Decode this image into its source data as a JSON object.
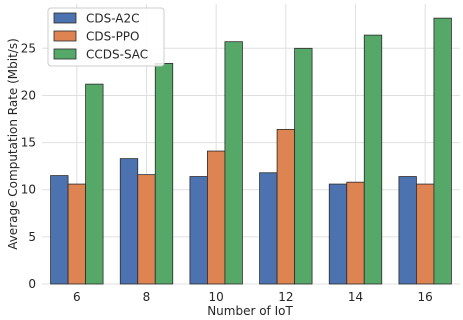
{
  "chart_data": {
    "type": "bar",
    "xlabel": "Number of IoT",
    "ylabel": "Average Computation Rate (Mbit/s)",
    "categories": [
      "6",
      "8",
      "10",
      "12",
      "14",
      "16"
    ],
    "ylim": [
      0,
      29.7
    ],
    "yticks": [
      0,
      5,
      10,
      15,
      20,
      25
    ],
    "grid": true,
    "legend_position": "top-left",
    "series": [
      {
        "name": "CDS-A2C",
        "color": "#4c72b0",
        "values": [
          11.5,
          13.3,
          11.4,
          11.8,
          10.6,
          11.4
        ]
      },
      {
        "name": "CDS-PPO",
        "color": "#dd8452",
        "values": [
          10.6,
          11.6,
          14.1,
          16.4,
          10.8,
          10.6
        ]
      },
      {
        "name": "CCDS-SAC",
        "color": "#55a868",
        "values": [
          21.2,
          23.4,
          25.7,
          25.0,
          26.4,
          28.2
        ]
      }
    ]
  }
}
